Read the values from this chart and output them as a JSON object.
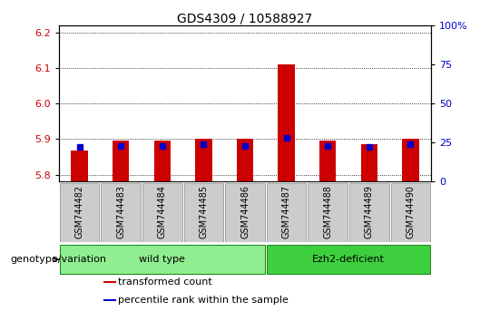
{
  "title": "GDS4309 / 10588927",
  "samples": [
    "GSM744482",
    "GSM744483",
    "GSM744484",
    "GSM744485",
    "GSM744486",
    "GSM744487",
    "GSM744488",
    "GSM744489",
    "GSM744490"
  ],
  "transformed_counts": [
    5.868,
    5.895,
    5.897,
    5.902,
    5.9,
    6.112,
    5.895,
    5.885,
    5.9
  ],
  "percentile_ranks": [
    22,
    23,
    23,
    24,
    23,
    28,
    23,
    22,
    24
  ],
  "ylim_left": [
    5.78,
    6.22
  ],
  "ylim_right": [
    0,
    100
  ],
  "yticks_left": [
    5.8,
    5.9,
    6.0,
    6.1,
    6.2
  ],
  "yticks_right": [
    0,
    25,
    50,
    75,
    100
  ],
  "ytick_labels_right": [
    "0",
    "25",
    "50",
    "75",
    "100%"
  ],
  "bar_color": "#cc0000",
  "dot_color": "#0000cc",
  "grid_color": "#000000",
  "groups": [
    {
      "label": "wild type",
      "start": 0,
      "end": 5,
      "color": "#90ee90"
    },
    {
      "label": "Ezh2-deficient",
      "start": 5,
      "end": 9,
      "color": "#3ecf3e"
    }
  ],
  "genotype_label": "genotype/variation",
  "legend_items": [
    {
      "color": "#cc0000",
      "label": "transformed count"
    },
    {
      "color": "#0000cc",
      "label": "percentile rank within the sample"
    }
  ],
  "baseline": 5.78,
  "bg_color_plot": "#ffffff",
  "tick_label_color_left": "#cc0000",
  "tick_label_color_right": "#0000cc",
  "xtick_box_color": "#cccccc",
  "bar_width": 0.4
}
